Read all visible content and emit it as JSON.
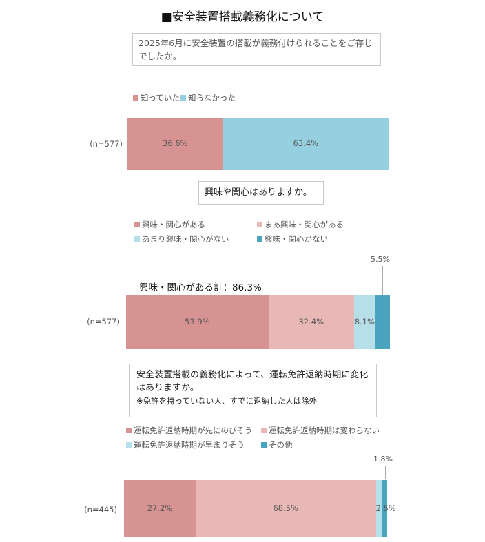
{
  "title": "■安全装置搭載義務化について",
  "colors": {
    "red": "#d69391",
    "pink": "#e8b8b6",
    "light_blue": "#b7dfe9",
    "blue": "#4aa3bf",
    "sky": "#96cfe0"
  },
  "chart_data": [
    {
      "type": "bar",
      "orientation": "horizontal-stacked",
      "question": "2025年6月に安全装置の搭載が義務付けられることをご存じでしたか。",
      "sample": "(n=577)",
      "series": [
        {
          "name": "知っていた",
          "value": 36.6,
          "label": "36.6%"
        },
        {
          "name": "知らなかった",
          "value": 63.4,
          "label": "63.4%"
        }
      ]
    },
    {
      "type": "bar",
      "orientation": "horizontal-stacked",
      "question": "興味や関心はありますか。",
      "sample": "(n=577)",
      "subtotal": "興味・関心がある計：86.3%",
      "series": [
        {
          "name": "興味・関心がある",
          "value": 53.9,
          "label": "53.9%"
        },
        {
          "name": "まあ興味・関心がある",
          "value": 32.4,
          "label": "32.4%"
        },
        {
          "name": "あまり興味・関心がない",
          "value": 8.1,
          "label": "8.1%"
        },
        {
          "name": "興味・関心がない",
          "value": 5.5,
          "label": "5.5%"
        }
      ]
    },
    {
      "type": "bar",
      "orientation": "horizontal-stacked",
      "question": "安全装置搭載の義務化によって、運転免許返納時期に変化はありますか。",
      "note": "※免許を持っていない人、すでに返納した人は除外",
      "sample": "(n=445)",
      "series": [
        {
          "name": "運転免許返納時期が先にのびそう",
          "value": 27.2,
          "label": "27.2%"
        },
        {
          "name": "運転免許返納時期は変わらない",
          "value": 68.5,
          "label": "68.5%"
        },
        {
          "name": "運転免許返納時期が早まりそう",
          "value": 2.5,
          "label": "2.5%"
        },
        {
          "name": "その他",
          "value": 1.8,
          "label": "1.8%"
        }
      ]
    }
  ]
}
